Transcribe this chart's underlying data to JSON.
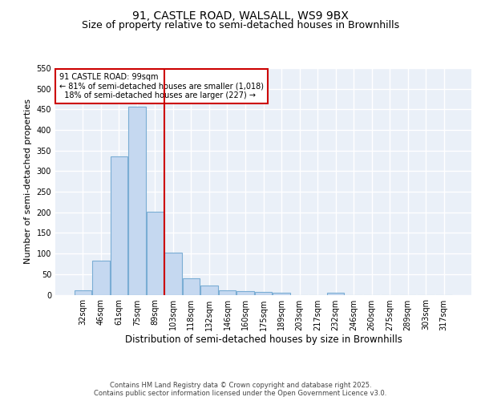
{
  "title1": "91, CASTLE ROAD, WALSALL, WS9 9BX",
  "title2": "Size of property relative to semi-detached houses in Brownhills",
  "xlabel": "Distribution of semi-detached houses by size in Brownhills",
  "ylabel": "Number of semi-detached properties",
  "bar_labels": [
    "32sqm",
    "46sqm",
    "61sqm",
    "75sqm",
    "89sqm",
    "103sqm",
    "118sqm",
    "132sqm",
    "146sqm",
    "160sqm",
    "175sqm",
    "189sqm",
    "203sqm",
    "217sqm",
    "232sqm",
    "246sqm",
    "260sqm",
    "275sqm",
    "289sqm",
    "303sqm",
    "317sqm"
  ],
  "bar_values": [
    10,
    83,
    335,
    457,
    201,
    102,
    40,
    22,
    10,
    8,
    6,
    4,
    0,
    0,
    4,
    0,
    0,
    0,
    0,
    0,
    0
  ],
  "bar_color": "#c5d8f0",
  "bar_edge_color": "#7aadd4",
  "ylim": [
    0,
    550
  ],
  "yticks": [
    0,
    50,
    100,
    150,
    200,
    250,
    300,
    350,
    400,
    450,
    500,
    550
  ],
  "vline_x": 4.5,
  "vline_color": "#cc0000",
  "annotation_text": "91 CASTLE ROAD: 99sqm\n← 81% of semi-detached houses are smaller (1,018)\n  18% of semi-detached houses are larger (227) →",
  "annotation_box_color": "#cc0000",
  "bg_color": "#eaf0f8",
  "footer": "Contains HM Land Registry data © Crown copyright and database right 2025.\nContains public sector information licensed under the Open Government Licence v3.0.",
  "grid_color": "#ffffff",
  "title_fontsize": 10,
  "subtitle_fontsize": 9,
  "tick_fontsize": 7,
  "ylabel_fontsize": 8,
  "xlabel_fontsize": 8.5
}
